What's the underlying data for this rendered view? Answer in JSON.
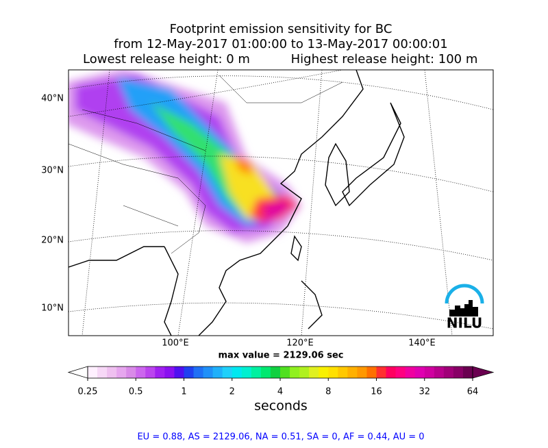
{
  "header": {
    "title": "Footprint emission sensitivity for BC",
    "period": "from 12-May-2017 01:00:00 to 13-May-2017 00:00:01",
    "lowest": "Lowest release height: 0 m",
    "highest": "Highest release height: 100 m"
  },
  "map": {
    "lat_labels": [
      "40°N",
      "30°N",
      "20°N",
      "10°N"
    ],
    "lon_labels": [
      "100°E",
      "120°E",
      "140°E"
    ],
    "max_value": "max value = 2129.06 sec",
    "logo": "NILU"
  },
  "colorbar": {
    "lim": [
      0.25,
      64
    ],
    "ticks": [
      0.25,
      0.5,
      1,
      2,
      4,
      8,
      16,
      32,
      64
    ],
    "label": "seconds",
    "colors": [
      "#fff0ff",
      "#f7d8f7",
      "#efc0f0",
      "#e6a6ee",
      "#d98ae8",
      "#cc66ee",
      "#bb44ee",
      "#a020f0",
      "#8a10f0",
      "#5010f0",
      "#2040f0",
      "#1f70f5",
      "#2090f8",
      "#20b0fa",
      "#20d0fa",
      "#00e8f0",
      "#00f0d0",
      "#00f0a0",
      "#00e870",
      "#10d040",
      "#50e020",
      "#90f020",
      "#b0f020",
      "#e0f020",
      "#f8f000",
      "#ffe000",
      "#ffc800",
      "#ffb000",
      "#ff9800",
      "#ff7000",
      "#ff3030",
      "#ff0060",
      "#ff0080",
      "#f000a0",
      "#e000b0",
      "#d000a0",
      "#b8008c",
      "#a00078",
      "#880066",
      "#6a0050"
    ]
  },
  "footer": "EU = 0.88,  AS = 2129.06,  NA = 0.51,  SA = 0,  AF = 0.44,  AU = 0"
}
